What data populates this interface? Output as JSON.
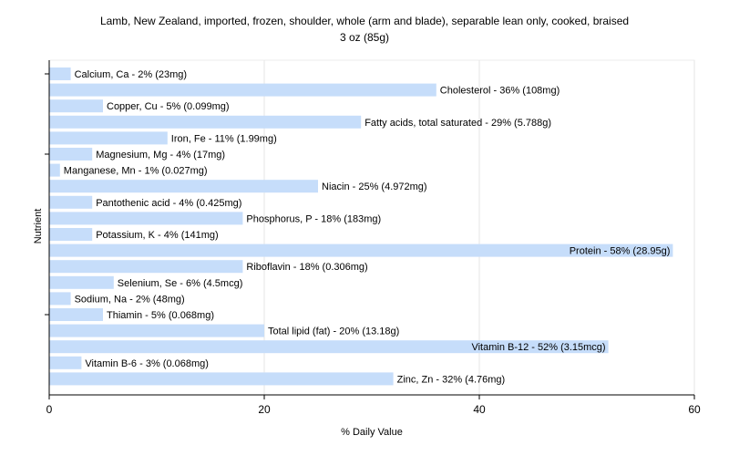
{
  "chart_data": {
    "type": "bar",
    "orientation": "horizontal",
    "title": "Lamb, New Zealand, imported, frozen, shoulder, whole (arm and blade), separable lean only, cooked, braised",
    "subtitle": "3 oz (85g)",
    "xlabel": "% Daily Value",
    "ylabel": "Nutrient",
    "xlim": [
      0,
      60
    ],
    "xticks": [
      0,
      20,
      40,
      60
    ],
    "grid": true,
    "bar_color": "#c6ddfa",
    "categories": [
      "Calcium, Ca",
      "Cholesterol",
      "Copper, Cu",
      "Fatty acids, total saturated",
      "Iron, Fe",
      "Magnesium, Mg",
      "Manganese, Mn",
      "Niacin",
      "Pantothenic acid",
      "Phosphorus, P",
      "Potassium, K",
      "Protein",
      "Riboflavin",
      "Selenium, Se",
      "Sodium, Na",
      "Thiamin",
      "Total lipid (fat)",
      "Vitamin B-12",
      "Vitamin B-6",
      "Zinc, Zn"
    ],
    "values": [
      2,
      36,
      5,
      29,
      11,
      4,
      1,
      25,
      4,
      18,
      4,
      58,
      18,
      6,
      2,
      5,
      20,
      52,
      3,
      32
    ],
    "labels": [
      "Calcium, Ca - 2% (23mg)",
      "Cholesterol - 36% (108mg)",
      "Copper, Cu - 5% (0.099mg)",
      "Fatty acids, total saturated - 29% (5.788g)",
      "Iron, Fe - 11% (1.99mg)",
      "Magnesium, Mg - 4% (17mg)",
      "Manganese, Mn - 1% (0.027mg)",
      "Niacin - 25% (4.972mg)",
      "Pantothenic acid - 4% (0.425mg)",
      "Phosphorus, P - 18% (183mg)",
      "Potassium, K - 4% (141mg)",
      "Protein - 58% (28.95g)",
      "Riboflavin - 18% (0.306mg)",
      "Selenium, Se - 6% (4.5mcg)",
      "Sodium, Na - 2% (48mg)",
      "Thiamin - 5% (0.068mg)",
      "Total lipid (fat) - 20% (13.18g)",
      "Vitamin B-12 - 52% (3.15mcg)",
      "Vitamin B-6 - 3% (0.068mg)",
      "Zinc, Zn - 32% (4.76mg)"
    ]
  }
}
